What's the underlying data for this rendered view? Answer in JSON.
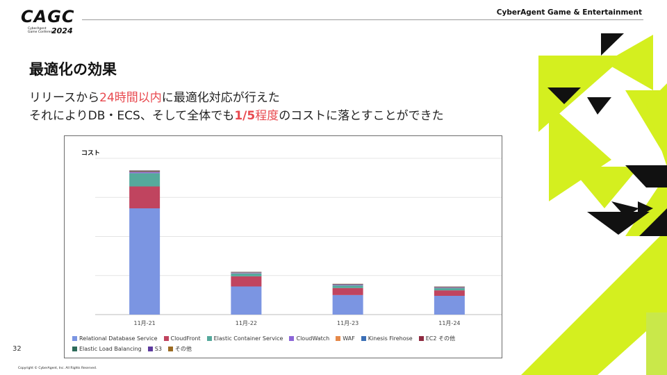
{
  "header": {
    "logo_main": "CAGC",
    "logo_sub_line1": "CyberAgent",
    "logo_sub_line2": "Game Conference",
    "logo_year": "2024",
    "brand": "CyberAgent Game & Entertainment"
  },
  "slide": {
    "title": "最適化の効果",
    "line1_before": "リリースから",
    "line1_highlight": "24時間以内",
    "line1_after": "に最適化対応が行えた",
    "line2_before": "それによりDB・ECS、そして全体でも",
    "line2_bold": "1/5",
    "line2_highlight": "程度",
    "line2_after": "のコストに落とすことができた",
    "page_number": "32",
    "copyright": "Copyright © CyberAgent, Inc. All Rights Reserved."
  },
  "colors": {
    "accent": "#d4ef1f",
    "highlight": "#e8494f"
  },
  "chart_data": {
    "type": "bar",
    "stacked": true,
    "title": "コスト",
    "categories": [
      "11月-21",
      "11月-22",
      "11月-23",
      "11月-24"
    ],
    "ylim": [
      0,
      100
    ],
    "grid": true,
    "legend_position": "bottom",
    "series": [
      {
        "name": "Relational Database Service",
        "color": "#7b95e2",
        "values": [
          68,
          18,
          12.5,
          12
        ]
      },
      {
        "name": "CloudFront",
        "color": "#c0445f",
        "values": [
          14,
          6.5,
          4.5,
          3.5
        ]
      },
      {
        "name": "Elastic Container Service",
        "color": "#55a99c",
        "values": [
          8.5,
          1.8,
          1.6,
          1.4
        ]
      },
      {
        "name": "CloudWatch",
        "color": "#8c66d8",
        "values": [
          0.6,
          0.3,
          0.3,
          0.3
        ]
      },
      {
        "name": "WAF",
        "color": "#e5894a",
        "values": [
          0.2,
          0.1,
          0.1,
          0.1
        ]
      },
      {
        "name": "Kinesis Firehose",
        "color": "#3b6fb6",
        "values": [
          0.2,
          0.1,
          0.1,
          0.1
        ]
      },
      {
        "name": "EC2 その他",
        "color": "#8e2a40",
        "values": [
          0.3,
          0.2,
          0.2,
          0.2
        ]
      },
      {
        "name": "Elastic Load Balancing",
        "color": "#2d6b59",
        "values": [
          0.3,
          0.2,
          0.2,
          0.2
        ]
      },
      {
        "name": "S3",
        "color": "#5d3a9e",
        "values": [
          0.1,
          0.1,
          0.1,
          0.1
        ]
      },
      {
        "name": "その他",
        "color": "#9b6b22",
        "values": [
          0.1,
          0.1,
          0.1,
          0.1
        ]
      }
    ]
  }
}
